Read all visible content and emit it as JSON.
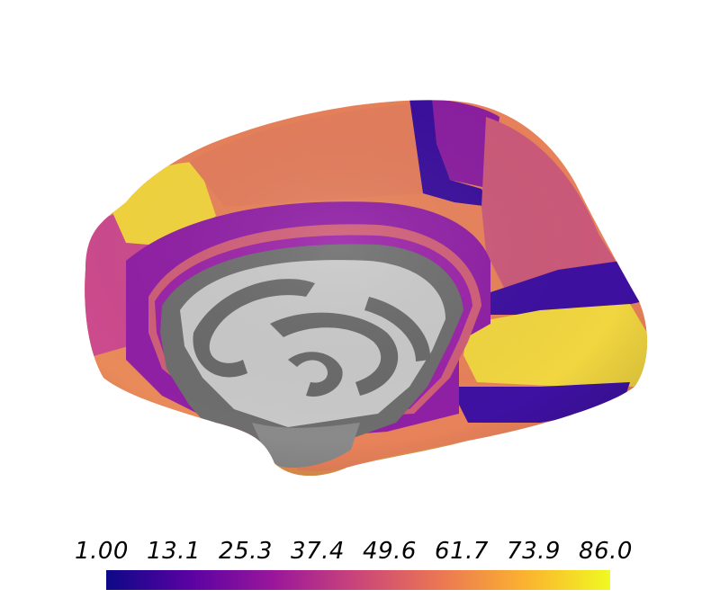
{
  "figure": {
    "description_hidden": "",
    "colormap": [
      "#0d0887",
      "#5b02a3",
      "#9a179b",
      "#cb4678",
      "#eb7852",
      "#fbb32f",
      "#f0f921"
    ]
  },
  "colorbar": {
    "ticks": [
      "1.00",
      "13.1",
      "25.3",
      "37.4",
      "49.6",
      "61.7",
      "73.9",
      "86.0"
    ],
    "min": 1.0,
    "max": 86.0
  }
}
